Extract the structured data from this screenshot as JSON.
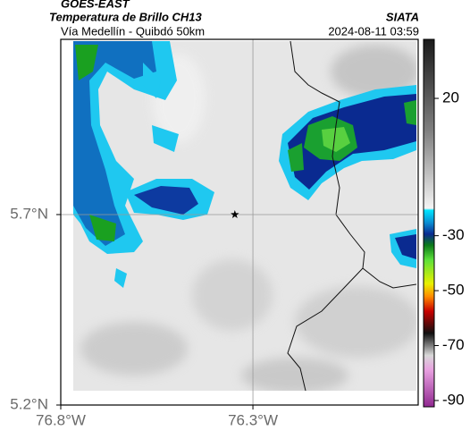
{
  "header": {
    "satellite": "GOES-EAST",
    "title": "Temperatura de Brillo CH13",
    "subtitle": "Vía Medellín - Quibdó 50km",
    "source": "SIATA",
    "timestamp": "2024-08-11 03:59"
  },
  "map": {
    "xlim": [
      -76.8,
      -75.87
    ],
    "ylim": [
      5.2,
      6.16
    ],
    "xticks": [
      {
        "value": -76.8,
        "label": "76.8°W"
      },
      {
        "value": -76.3,
        "label": "76.3°W"
      }
    ],
    "yticks": [
      {
        "value": 5.2,
        "label": "5.2°N"
      },
      {
        "value": 5.7,
        "label": "5.7°N"
      }
    ],
    "marker": {
      "lon": -76.347,
      "lat": 5.7
    }
  },
  "colorbar": {
    "lim": [
      -92.3,
      41.5
    ],
    "ticks": [
      20,
      -30,
      -50,
      -70,
      -90
    ]
  }
}
